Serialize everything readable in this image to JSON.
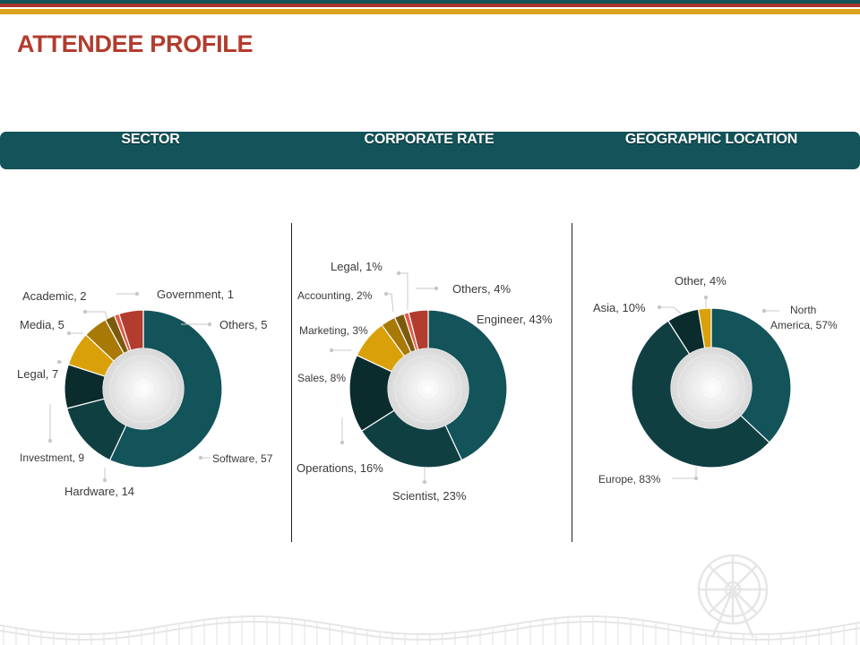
{
  "title": "ATTENDEE PROFILE",
  "headers": [
    "SECTOR",
    "CORPORATE RATE",
    "GEOGRAPHIC LOCATION"
  ],
  "colors": {
    "title": "#b23c2e",
    "header_bar": "#13535a",
    "stripe_teal": "#13535a",
    "stripe_red": "#a8352a",
    "stripe_gold": "#d9a31c"
  },
  "chart_data": [
    {
      "type": "pie",
      "variant": "donut",
      "title": "SECTOR",
      "slices": [
        {
          "label": "Software, 57",
          "value": 57,
          "color": "#13535a"
        },
        {
          "label": "Hardware, 14",
          "value": 14,
          "color": "#103f42"
        },
        {
          "label": "Investment, 9",
          "value": 9,
          "color": "#0b2c2d"
        },
        {
          "label": "Legal, 7",
          "value": 7,
          "color": "#d9a00a"
        },
        {
          "label": "Media, 5",
          "value": 5,
          "color": "#a87905"
        },
        {
          "label": "Academic, 2",
          "value": 2,
          "color": "#7a5a0c"
        },
        {
          "label": "Government,  1",
          "value": 1,
          "color": "#e05a4a"
        },
        {
          "label": "Others, 5",
          "value": 5,
          "color": "#b23c2e"
        }
      ]
    },
    {
      "type": "pie",
      "variant": "donut",
      "title": "CORPORATE RATE",
      "slices": [
        {
          "label": "Engineer, 43%",
          "value": 43,
          "color": "#13535a"
        },
        {
          "label": "Scientist, 23%",
          "value": 23,
          "color": "#103f42"
        },
        {
          "label": "Operations, 16%",
          "value": 16,
          "color": "#0b2c2d"
        },
        {
          "label": "Sales, 8%",
          "value": 8,
          "color": "#d9a00a"
        },
        {
          "label": "Marketing, 3%",
          "value": 3,
          "color": "#a87905"
        },
        {
          "label": "Accounting, 2%",
          "value": 2,
          "color": "#7a5a0c"
        },
        {
          "label": "Legal, 1%",
          "value": 1,
          "color": "#e05a4a"
        },
        {
          "label": "Others, 4%",
          "value": 4,
          "color": "#b23c2e"
        }
      ]
    },
    {
      "type": "pie",
      "variant": "donut",
      "title": "GEOGRAPHIC LOCATION",
      "slices": [
        {
          "label": "North America, 57%",
          "value": 57,
          "color": "#13535a"
        },
        {
          "label": "Europe, 83%",
          "value": 83,
          "color": "#103f42"
        },
        {
          "label": "Asia, 10%",
          "value": 10,
          "color": "#0b2c2d"
        },
        {
          "label": "Other, 4%",
          "value": 4,
          "color": "#d9a00a"
        }
      ]
    }
  ]
}
